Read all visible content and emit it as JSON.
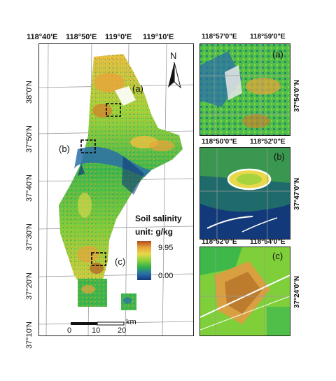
{
  "main_map": {
    "top_lon_labels": [
      "118°40'E",
      "118°50'E",
      "119°0'E",
      "119°10'E"
    ],
    "left_lat_labels": [
      "38°0'N",
      "37°50'N",
      "37°40'N",
      "37°30'N",
      "37°20'N",
      "37°10'N"
    ],
    "panel_labels": [
      "(a)",
      "(b)",
      "(c)"
    ],
    "north_arrow": "N",
    "scalebar": {
      "unit": "km",
      "ticks": [
        "0",
        "10",
        "20"
      ]
    }
  },
  "legend": {
    "title": "Soil salinity",
    "unit": "unit: g/kg",
    "max": "9.95",
    "min": "0.00",
    "colors": [
      "#b14a1c",
      "#e8a43a",
      "#e8d84a",
      "#8cd23a",
      "#2fb04a",
      "#2a6fa8",
      "#123a7a"
    ]
  },
  "inset_a": {
    "letter": "(a)",
    "lon_labels": [
      "118°57'0\"E",
      "118°59'0\"E"
    ],
    "lat_label": "37°54'0\"N"
  },
  "inset_b": {
    "letter": "(b)",
    "lon_labels": [
      "118°50'0\"E",
      "118°52'0\"E"
    ],
    "lat_label": "37°47'0\"N"
  },
  "inset_c": {
    "letter": "(c)",
    "lon_labels": [
      "118°52'0\"E",
      "118°54'0\"E"
    ],
    "lat_label": "37°24'0\"N"
  }
}
